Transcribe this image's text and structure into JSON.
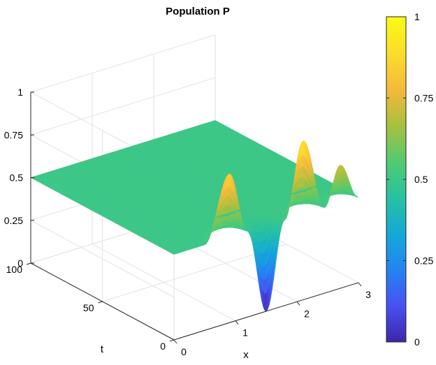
{
  "chart_data": {
    "type": "surface",
    "title": "Population P",
    "xlabel": "x",
    "ylabel": "t",
    "zlabel": "",
    "xlim": [
      0,
      3
    ],
    "tlim": [
      0,
      100
    ],
    "zlim": [
      0,
      1
    ],
    "x_ticks": [
      "0",
      "1",
      "2",
      "3"
    ],
    "t_ticks": [
      "0",
      "50",
      "100"
    ],
    "z_ticks": [
      "0",
      "0.25",
      "0.5",
      "0.75",
      "1"
    ],
    "grid": true,
    "colormap": "parula",
    "colormap_colors": [
      "#3e26a8",
      "#4751f4",
      "#2484f2",
      "#14a9d6",
      "#27c2a0",
      "#52cb6f",
      "#a9c03e",
      "#f5ba3b",
      "#fbdd2b",
      "#f9fb15"
    ],
    "colorbar": {
      "location": "right",
      "limits": [
        0,
        1
      ],
      "ticks": [
        "0",
        "0.25",
        "0.5",
        "0.75",
        "1"
      ]
    },
    "surface_description": {
      "plateau_value": 0.5,
      "plateau_t_range": [
        5,
        100
      ],
      "initial_profile_t0": [
        {
          "x": 0.0,
          "p": 0.5
        },
        {
          "x": 0.5,
          "p": 0.5
        },
        {
          "x": 0.9,
          "p": 0.87
        },
        {
          "x": 1.2,
          "p": 0.5
        },
        {
          "x": 1.5,
          "p": 0.0
        },
        {
          "x": 1.8,
          "p": 0.5
        },
        {
          "x": 2.1,
          "p": 0.93
        },
        {
          "x": 2.45,
          "p": 0.5
        },
        {
          "x": 2.7,
          "p": 0.72
        },
        {
          "x": 3.0,
          "p": 0.5
        }
      ]
    }
  }
}
